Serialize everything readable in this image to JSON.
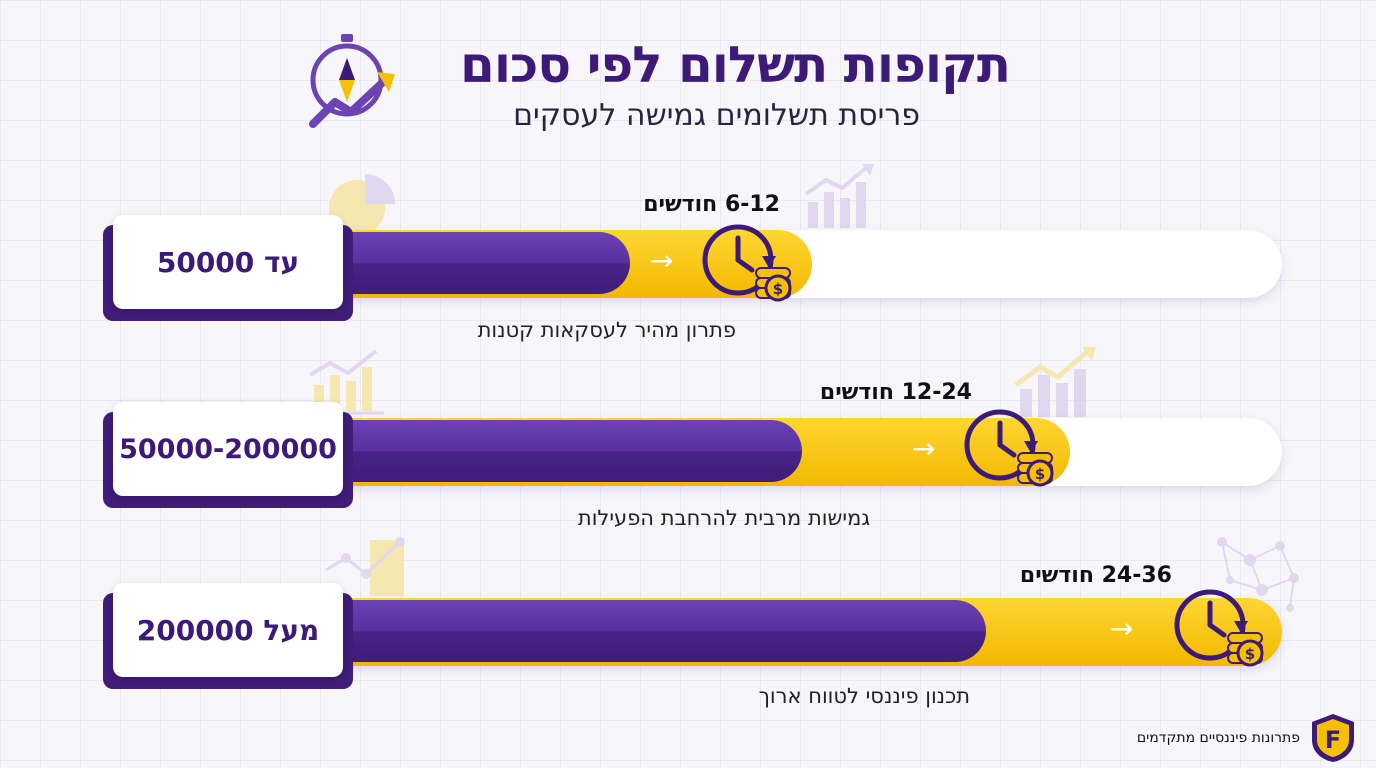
{
  "header": {
    "title": "תקופות תשלום לפי סכום",
    "subtitle": "פריסת תשלומים גמישה לעסקים"
  },
  "rows": [
    {
      "amount": "עד 50000",
      "duration": "6-12 חודשים",
      "description": "פתרון מהיר לעסקאות קטנות",
      "progress_percent": 42
    },
    {
      "amount": "50000-200000",
      "duration": "12-24 חודשים",
      "description": "גמישות מרבית להרחבת הפעילות",
      "progress_percent": 64
    },
    {
      "amount": "מעל 200000",
      "duration": "24-36 חודשים",
      "description": "תכנון פיננסי לטווח ארוך",
      "progress_percent": 100
    }
  ],
  "footer": {
    "brand_text": "פתרונות פיננסיים מתקדמים",
    "logo_letter": "F"
  },
  "colors": {
    "purple": "#3f1d79",
    "yellow": "#f5c000",
    "background": "#f7f6fb"
  },
  "icons": [
    "compass-growth-icon",
    "clock-coins-icon",
    "right-arrow-icon",
    "pie-chart-icon",
    "bar-chart-icon",
    "network-icon",
    "shield-logo-icon"
  ]
}
